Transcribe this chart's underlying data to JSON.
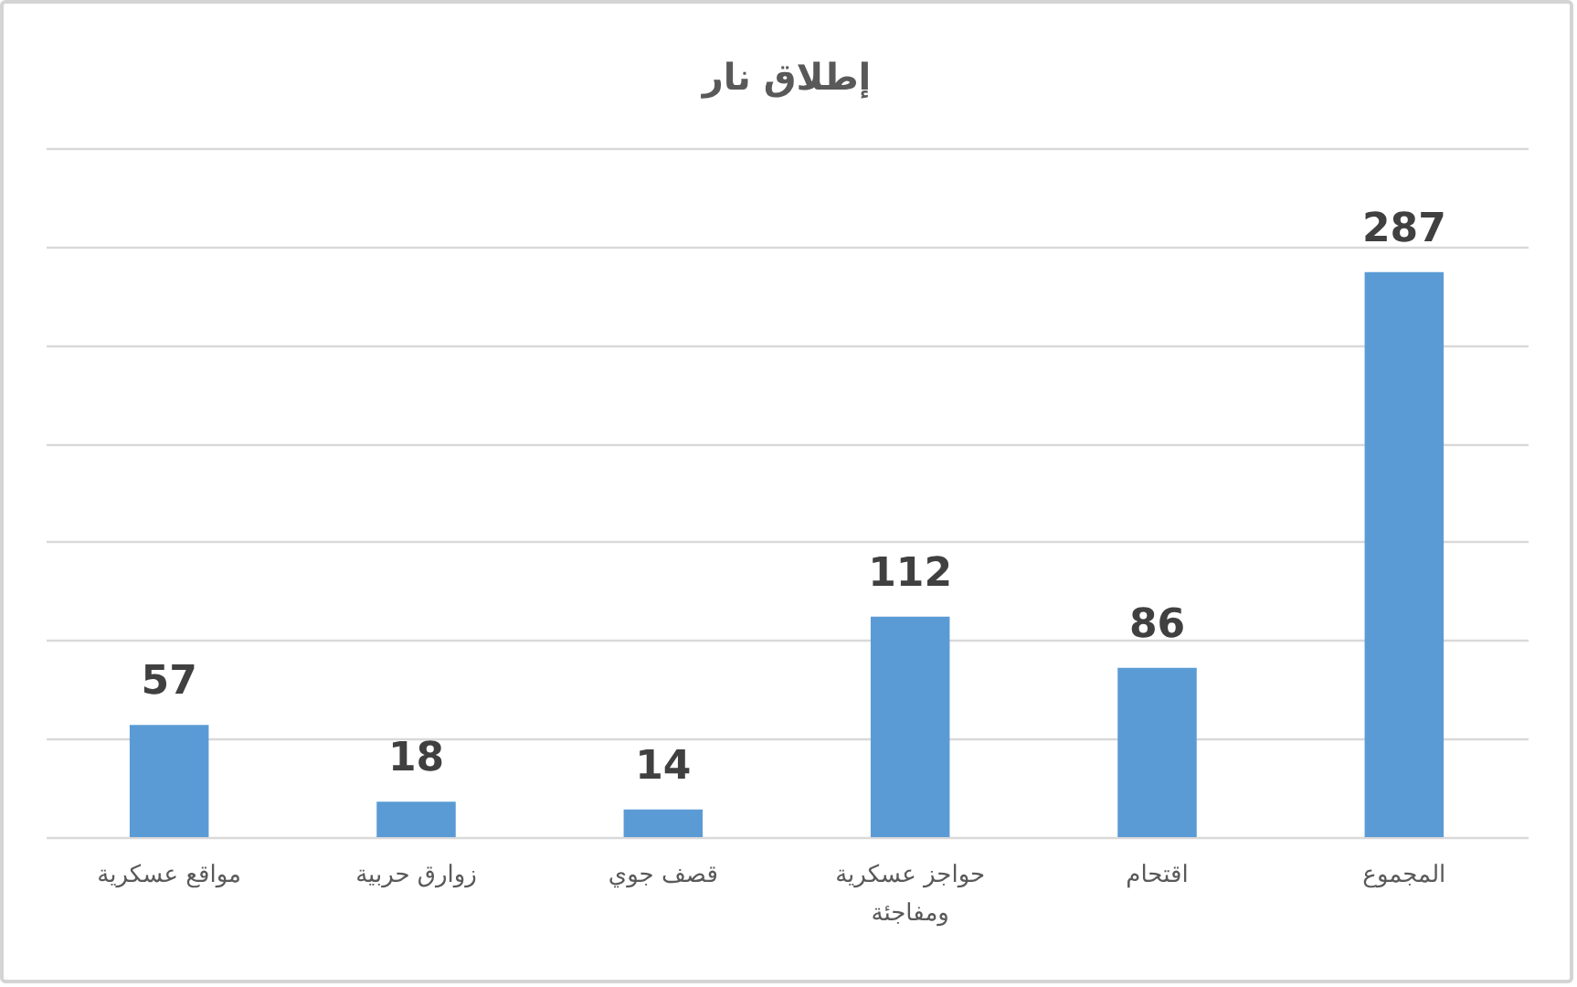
{
  "chart_data": {
    "type": "bar",
    "title": "إطلاق نار",
    "categories": [
      "مواقع عسكرية",
      "زوارق حربية",
      "قصف جوي",
      "حواجز عسكرية ومفاجئة",
      "اقتحام",
      "المجموع"
    ],
    "values": [
      57,
      18,
      14,
      112,
      86,
      287
    ],
    "color": "#5b9bd5",
    "ylim": [
      0,
      350
    ],
    "yticks": [
      {
        "value": 0,
        "label": null
      },
      {
        "value": 50,
        "label": null
      },
      {
        "value": 100,
        "label": null
      },
      {
        "value": 150,
        "label": null
      },
      {
        "value": 200,
        "label": null
      },
      {
        "value": 250,
        "label": null
      },
      {
        "value": 300,
        "label": null
      },
      {
        "value": 350,
        "label": null
      }
    ],
    "grid": "y",
    "tick_labels": "x",
    "data_labels": true
  }
}
